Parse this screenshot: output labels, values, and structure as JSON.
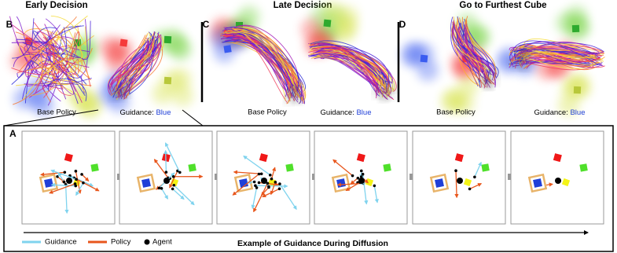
{
  "panels": [
    {
      "letter": "B",
      "title": "Early Decision",
      "left_caption": "Base Policy",
      "right_caption": "Guidance:",
      "right_caption_target": "Blue"
    },
    {
      "letter": "C",
      "title": "Late Decision",
      "left_caption": "Base Policy",
      "right_caption": "Guidance:",
      "right_caption_target": "Blue"
    },
    {
      "letter": "D",
      "title": "Go to Furthest Cube",
      "left_caption": "Base Policy",
      "right_caption": "Guidance:",
      "right_caption_target": "Blue"
    }
  ],
  "panel_a": {
    "letter": "A",
    "legend": [
      "Guidance",
      "Policy",
      "Agent"
    ],
    "caption": "Example of Guidance During Diffusion"
  }
}
